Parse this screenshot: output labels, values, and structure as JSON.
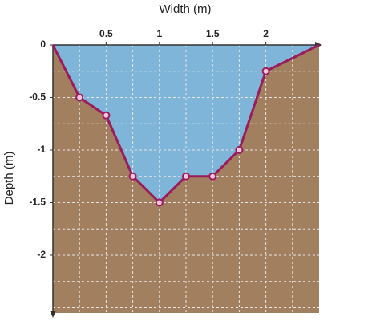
{
  "chart_data": {
    "type": "area-profile",
    "x_label": "Width (m)",
    "y_label": "Depth (m)",
    "x": [
      0,
      0.25,
      0.5,
      0.75,
      1,
      1.25,
      1.5,
      1.75,
      2,
      2.5
    ],
    "values": [
      0,
      -0.5,
      -0.67,
      -1.25,
      -1.5,
      -1.25,
      -1.25,
      -1,
      -0.25,
      0
    ],
    "xlim": [
      0,
      2.5
    ],
    "ylim": [
      -2.55,
      0
    ],
    "xticks": [
      0.5,
      1,
      1.5,
      2
    ],
    "yticks": [
      0,
      -0.5,
      -1,
      -1.5,
      -2
    ],
    "grid_x": [
      0.25,
      0.5,
      0.75,
      1,
      1.25,
      1.5,
      1.75,
      2,
      2.25
    ],
    "grid_y": [
      -0.25,
      -0.5,
      -0.75,
      -1,
      -1.25,
      -1.5,
      -1.75,
      -2,
      -2.25,
      -2.5
    ],
    "line_color": "#9b1c5c",
    "water_color": "#7fb5d9",
    "ground_color": "#a2805f"
  }
}
